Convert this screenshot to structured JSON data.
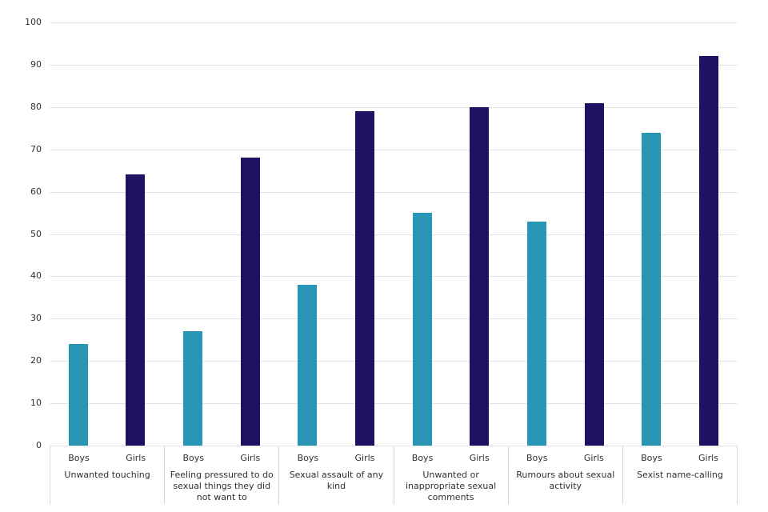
{
  "chart_data": {
    "type": "bar",
    "title": "",
    "xlabel": "",
    "ylabel": "",
    "categories": [
      "Unwanted touching",
      "Feeling pressured to do sexual things they did not want to",
      "Sexual assault of any kind",
      "Unwanted or inappropriate sexual comments",
      "Rumours about sexual activity",
      "Sexist name-calling"
    ],
    "series": [
      {
        "name": "Boys",
        "color": "#2996b5",
        "values": [
          24,
          27,
          38,
          55,
          53,
          74
        ]
      },
      {
        "name": "Girls",
        "color": "#1e1263",
        "values": [
          64,
          68,
          79,
          80,
          81,
          92
        ]
      }
    ],
    "ylim": [
      0,
      100
    ],
    "yticks": [
      0,
      10,
      20,
      30,
      40,
      50,
      60,
      70,
      80,
      90,
      100
    ],
    "grid": true,
    "legend_position": "none"
  },
  "colors": {
    "background": "#ffffff",
    "gridline": "#e4e4e4",
    "divider": "#d6d6d6",
    "text": "#303030"
  }
}
